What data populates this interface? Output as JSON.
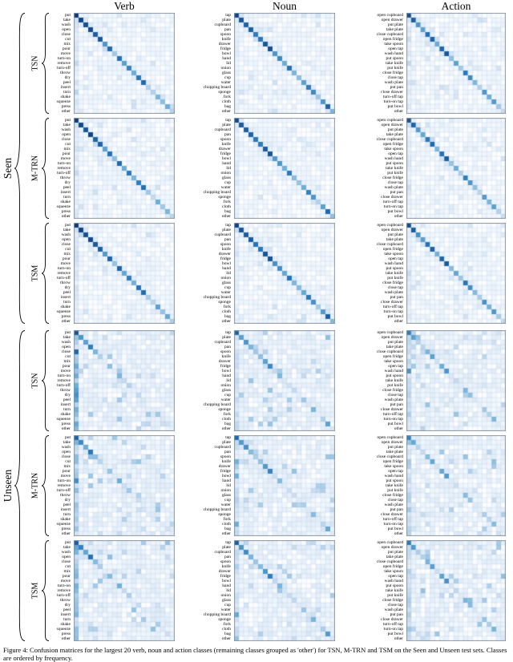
{
  "figure": {
    "column_titles": [
      "Verb",
      "Noun",
      "Action"
    ],
    "group_labels": [
      "Seen",
      "Unseen"
    ],
    "model_labels": [
      "TSN",
      "M-TRN",
      "TSM"
    ],
    "caption": "Figure 4: Confusion matrices for the largest 20 verb, noun and action classes (remaining classes grouped as 'other') for TSN, M-TRN and TSM on the Seen and Unseen test sets. Classes are ordered by frequency."
  },
  "chart_data": {
    "type": "heatmap",
    "layout": "grid of 18 confusion matrices; rows = [Seen, Unseen] x [TSN, M-TRN, TSM]; columns = [Verb, Noun, Action]; darker blue = higher value",
    "colormap": [
      "#f7fbff",
      "#c6dbef",
      "#6baed6",
      "#2171b5",
      "#08306b"
    ],
    "verb_classes": [
      "put",
      "take",
      "wash",
      "open",
      "close",
      "cut",
      "mix",
      "pour",
      "move",
      "turn-on",
      "remove",
      "turn-off",
      "throw",
      "dry",
      "peel",
      "insert",
      "turn",
      "shake",
      "squeeze",
      "press",
      "other"
    ],
    "noun_classes": [
      "tap",
      "plate",
      "cupboard",
      "pan",
      "spoon",
      "knife",
      "drawer",
      "fridge",
      "bowl",
      "hand",
      "lid",
      "onion",
      "glass",
      "cup",
      "water",
      "chopping board",
      "sponge",
      "fork",
      "cloth",
      "bag",
      "other"
    ],
    "action_classes": [
      "open cupboard",
      "open drawer",
      "put plate",
      "take plate",
      "close cupboard",
      "open fridge",
      "take spoon",
      "open tap",
      "wash hand",
      "put spoon",
      "take knife",
      "put knife",
      "close fridge",
      "close tap",
      "wash plate",
      "put pan",
      "close drawer",
      "turn-off tap",
      "turn-on tap",
      "put bowl",
      "other"
    ],
    "matrices": [
      {
        "group": "Seen",
        "model": "TSN",
        "task": "Verb",
        "seed": 1,
        "noise": 0.06,
        "first_column_bias": 0.15,
        "diagonal": [
          0.97,
          0.92,
          0.88,
          0.9,
          0.82,
          0.85,
          0.6,
          0.78,
          0.35,
          0.75,
          0.55,
          0.68,
          0.5,
          0.72,
          0.78,
          0.3,
          0.3,
          0.45,
          0.4,
          0.5,
          0.3
        ]
      },
      {
        "group": "Seen",
        "model": "TSN",
        "task": "Noun",
        "seed": 2,
        "noise": 0.06,
        "first_column_bias": 0.08,
        "diagonal": [
          0.92,
          0.85,
          0.8,
          0.82,
          0.7,
          0.72,
          0.85,
          0.88,
          0.6,
          0.65,
          0.5,
          0.75,
          0.45,
          0.4,
          0.55,
          0.7,
          0.65,
          0.35,
          0.6,
          0.8,
          0.45
        ]
      },
      {
        "group": "Seen",
        "model": "TSN",
        "task": "Action",
        "seed": 3,
        "noise": 0.06,
        "first_column_bias": 0.1,
        "diagonal": [
          0.88,
          0.82,
          0.6,
          0.55,
          0.75,
          0.8,
          0.5,
          0.78,
          0.85,
          0.4,
          0.55,
          0.35,
          0.72,
          0.65,
          0.45,
          0.3,
          0.6,
          0.5,
          0.58,
          0.35,
          0.25
        ]
      },
      {
        "group": "Seen",
        "model": "M-TRN",
        "task": "Verb",
        "seed": 4,
        "noise": 0.06,
        "first_column_bias": 0.15,
        "diagonal": [
          0.95,
          0.9,
          0.85,
          0.92,
          0.8,
          0.8,
          0.55,
          0.75,
          0.4,
          0.78,
          0.5,
          0.72,
          0.45,
          0.7,
          0.75,
          0.35,
          0.25,
          0.5,
          0.35,
          0.45,
          0.28
        ]
      },
      {
        "group": "Seen",
        "model": "M-TRN",
        "task": "Noun",
        "seed": 5,
        "noise": 0.06,
        "first_column_bias": 0.08,
        "diagonal": [
          0.9,
          0.83,
          0.82,
          0.8,
          0.72,
          0.7,
          0.83,
          0.86,
          0.58,
          0.6,
          0.48,
          0.72,
          0.42,
          0.38,
          0.5,
          0.68,
          0.6,
          0.3,
          0.55,
          0.78,
          0.4
        ]
      },
      {
        "group": "Seen",
        "model": "M-TRN",
        "task": "Action",
        "seed": 6,
        "noise": 0.06,
        "first_column_bias": 0.1,
        "diagonal": [
          0.86,
          0.8,
          0.58,
          0.52,
          0.72,
          0.78,
          0.45,
          0.75,
          0.83,
          0.38,
          0.5,
          0.32,
          0.7,
          0.6,
          0.4,
          0.28,
          0.58,
          0.45,
          0.55,
          0.3,
          0.22
        ]
      },
      {
        "group": "Seen",
        "model": "TSM",
        "task": "Verb",
        "seed": 7,
        "noise": 0.06,
        "first_column_bias": 0.15,
        "diagonal": [
          0.96,
          0.93,
          0.87,
          0.91,
          0.84,
          0.82,
          0.58,
          0.8,
          0.38,
          0.8,
          0.52,
          0.7,
          0.48,
          0.74,
          0.76,
          0.32,
          0.28,
          0.55,
          0.38,
          0.52,
          0.32
        ]
      },
      {
        "group": "Seen",
        "model": "TSM",
        "task": "Noun",
        "seed": 8,
        "noise": 0.06,
        "first_column_bias": 0.08,
        "diagonal": [
          0.93,
          0.86,
          0.83,
          0.84,
          0.74,
          0.73,
          0.86,
          0.87,
          0.62,
          0.63,
          0.52,
          0.74,
          0.44,
          0.42,
          0.52,
          0.72,
          0.62,
          0.33,
          0.58,
          0.82,
          0.42
        ]
      },
      {
        "group": "Seen",
        "model": "TSM",
        "task": "Action",
        "seed": 9,
        "noise": 0.06,
        "first_column_bias": 0.1,
        "diagonal": [
          0.89,
          0.83,
          0.62,
          0.56,
          0.74,
          0.81,
          0.48,
          0.79,
          0.84,
          0.42,
          0.53,
          0.36,
          0.73,
          0.63,
          0.43,
          0.32,
          0.62,
          0.48,
          0.6,
          0.33,
          0.26
        ]
      },
      {
        "group": "Unseen",
        "model": "TSN",
        "task": "Verb",
        "seed": 10,
        "noise": 0.12,
        "first_column_bias": 0.5,
        "diagonal": [
          0.85,
          0.6,
          0.55,
          0.7,
          0.45,
          0.3,
          0.1,
          0.4,
          0.1,
          0.45,
          0.25,
          0.3,
          0.08,
          0.25,
          0.15,
          0.05,
          0.1,
          0.35,
          0.15,
          0.2,
          0.08
        ]
      },
      {
        "group": "Unseen",
        "model": "TSN",
        "task": "Noun",
        "seed": 11,
        "noise": 0.12,
        "first_column_bias": 0.2,
        "diagonal": [
          0.8,
          0.55,
          0.6,
          0.45,
          0.35,
          0.4,
          0.55,
          0.65,
          0.25,
          0.45,
          0.15,
          0.2,
          0.25,
          0.1,
          0.35,
          0.15,
          0.45,
          0.08,
          0.3,
          0.55,
          0.15
        ]
      },
      {
        "group": "Unseen",
        "model": "TSN",
        "task": "Action",
        "seed": 12,
        "noise": 0.12,
        "first_column_bias": 0.25,
        "diagonal": [
          0.7,
          0.55,
          0.3,
          0.28,
          0.45,
          0.55,
          0.2,
          0.5,
          0.6,
          0.15,
          0.25,
          0.1,
          0.45,
          0.4,
          0.15,
          0.08,
          0.35,
          0.3,
          0.45,
          0.12,
          0.08
        ]
      },
      {
        "group": "Unseen",
        "model": "M-TRN",
        "task": "Verb",
        "seed": 13,
        "noise": 0.12,
        "first_column_bias": 0.38,
        "diagonal": [
          0.8,
          0.65,
          0.5,
          0.72,
          0.4,
          0.28,
          0.12,
          0.38,
          0.12,
          0.5,
          0.22,
          0.35,
          0.1,
          0.22,
          0.12,
          0.08,
          0.12,
          0.3,
          0.12,
          0.18,
          0.1
        ]
      },
      {
        "group": "Unseen",
        "model": "M-TRN",
        "task": "Noun",
        "seed": 14,
        "noise": 0.12,
        "first_column_bias": 0.2,
        "diagonal": [
          0.78,
          0.58,
          0.62,
          0.42,
          0.32,
          0.38,
          0.58,
          0.68,
          0.22,
          0.42,
          0.12,
          0.22,
          0.22,
          0.12,
          0.32,
          0.12,
          0.42,
          0.1,
          0.28,
          0.52,
          0.12
        ]
      },
      {
        "group": "Unseen",
        "model": "M-TRN",
        "task": "Action",
        "seed": 15,
        "noise": 0.12,
        "first_column_bias": 0.25,
        "diagonal": [
          0.68,
          0.52,
          0.28,
          0.25,
          0.42,
          0.52,
          0.18,
          0.52,
          0.58,
          0.12,
          0.22,
          0.08,
          0.42,
          0.38,
          0.12,
          0.1,
          0.32,
          0.28,
          0.42,
          0.1,
          0.1
        ]
      },
      {
        "group": "Unseen",
        "model": "TSM",
        "task": "Verb",
        "seed": 16,
        "noise": 0.12,
        "first_column_bias": 0.42,
        "diagonal": [
          0.82,
          0.68,
          0.52,
          0.74,
          0.42,
          0.32,
          0.1,
          0.42,
          0.1,
          0.48,
          0.24,
          0.32,
          0.08,
          0.24,
          0.14,
          0.06,
          0.14,
          0.32,
          0.14,
          0.22,
          0.08
        ]
      },
      {
        "group": "Unseen",
        "model": "TSM",
        "task": "Noun",
        "seed": 17,
        "noise": 0.12,
        "first_column_bias": 0.2,
        "diagonal": [
          0.82,
          0.6,
          0.64,
          0.46,
          0.36,
          0.42,
          0.6,
          0.7,
          0.26,
          0.46,
          0.16,
          0.24,
          0.26,
          0.14,
          0.36,
          0.16,
          0.46,
          0.12,
          0.32,
          0.58,
          0.16
        ]
      },
      {
        "group": "Unseen",
        "model": "TSM",
        "task": "Action",
        "seed": 18,
        "noise": 0.12,
        "first_column_bias": 0.25,
        "diagonal": [
          0.72,
          0.58,
          0.32,
          0.3,
          0.46,
          0.56,
          0.22,
          0.54,
          0.62,
          0.16,
          0.26,
          0.12,
          0.46,
          0.42,
          0.16,
          0.1,
          0.38,
          0.32,
          0.46,
          0.14,
          0.12
        ]
      }
    ]
  }
}
